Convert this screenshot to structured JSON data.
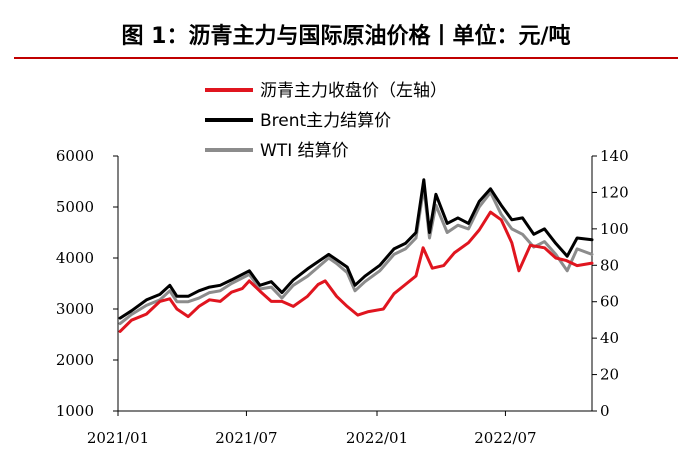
{
  "title": "图 1：沥青主力与国际原油价格丨单位：元/吨",
  "chart_data": {
    "type": "line",
    "x_ticks": [
      "2021/01",
      "2021/07",
      "2022/01",
      "2022/07"
    ],
    "x_range": [
      "2021-01",
      "2022-10"
    ],
    "y_left": {
      "range": [
        1000,
        6000
      ],
      "ticks": [
        "1000",
        "2000",
        "3000",
        "4000",
        "5000",
        "6000"
      ]
    },
    "y_right": {
      "range": [
        0,
        140
      ],
      "ticks": [
        "0",
        "20",
        "40",
        "60",
        "80",
        "100",
        "120",
        "140"
      ]
    },
    "grid": false,
    "legend_position": "top-center",
    "series": [
      {
        "name": "沥青主力收盘价（左轴）",
        "axis": "left",
        "color": "#e0151f",
        "points": [
          [
            "2021-01-04",
            2560
          ],
          [
            "2021-01-20",
            2780
          ],
          [
            "2021-02-10",
            2900
          ],
          [
            "2021-03-01",
            3150
          ],
          [
            "2021-03-15",
            3200
          ],
          [
            "2021-03-25",
            3000
          ],
          [
            "2021-04-10",
            2850
          ],
          [
            "2021-04-25",
            3050
          ],
          [
            "2021-05-10",
            3180
          ],
          [
            "2021-05-25",
            3150
          ],
          [
            "2021-06-10",
            3330
          ],
          [
            "2021-06-25",
            3400
          ],
          [
            "2021-07-05",
            3550
          ],
          [
            "2021-07-20",
            3350
          ],
          [
            "2021-08-05",
            3150
          ],
          [
            "2021-08-20",
            3150
          ],
          [
            "2021-09-05",
            3050
          ],
          [
            "2021-09-25",
            3250
          ],
          [
            "2021-10-10",
            3480
          ],
          [
            "2021-10-20",
            3550
          ],
          [
            "2021-11-05",
            3250
          ],
          [
            "2021-11-20",
            3050
          ],
          [
            "2021-12-05",
            2880
          ],
          [
            "2021-12-20",
            2950
          ],
          [
            "2022-01-10",
            3000
          ],
          [
            "2022-01-25",
            3300
          ],
          [
            "2022-02-10",
            3480
          ],
          [
            "2022-02-25",
            3650
          ],
          [
            "2022-03-07",
            4200
          ],
          [
            "2022-03-20",
            3800
          ],
          [
            "2022-04-05",
            3850
          ],
          [
            "2022-04-20",
            4100
          ],
          [
            "2022-05-10",
            4300
          ],
          [
            "2022-05-25",
            4550
          ],
          [
            "2022-06-10",
            4900
          ],
          [
            "2022-06-25",
            4750
          ],
          [
            "2022-07-10",
            4300
          ],
          [
            "2022-07-20",
            3750
          ],
          [
            "2022-08-05",
            4250
          ],
          [
            "2022-08-25",
            4200
          ],
          [
            "2022-09-10",
            4000
          ],
          [
            "2022-09-25",
            3950
          ],
          [
            "2022-10-10",
            3850
          ],
          [
            "2022-10-31",
            3900
          ]
        ]
      },
      {
        "name": "Brent主力结算价",
        "axis": "right",
        "color": "#000000",
        "points": [
          [
            "2021-01-04",
            51
          ],
          [
            "2021-01-20",
            55
          ],
          [
            "2021-02-10",
            61
          ],
          [
            "2021-03-01",
            64
          ],
          [
            "2021-03-15",
            69
          ],
          [
            "2021-03-25",
            63
          ],
          [
            "2021-04-10",
            63
          ],
          [
            "2021-04-25",
            66
          ],
          [
            "2021-05-10",
            68
          ],
          [
            "2021-05-25",
            69
          ],
          [
            "2021-06-10",
            72
          ],
          [
            "2021-06-25",
            75
          ],
          [
            "2021-07-05",
            77
          ],
          [
            "2021-07-20",
            69
          ],
          [
            "2021-08-05",
            71
          ],
          [
            "2021-08-20",
            65
          ],
          [
            "2021-09-05",
            72
          ],
          [
            "2021-09-25",
            78
          ],
          [
            "2021-10-10",
            82
          ],
          [
            "2021-10-25",
            86
          ],
          [
            "2021-11-05",
            83
          ],
          [
            "2021-11-20",
            79
          ],
          [
            "2021-12-01",
            69
          ],
          [
            "2021-12-15",
            74
          ],
          [
            "2022-01-05",
            80
          ],
          [
            "2022-01-25",
            89
          ],
          [
            "2022-02-10",
            92
          ],
          [
            "2022-02-25",
            98
          ],
          [
            "2022-03-08",
            127
          ],
          [
            "2022-03-16",
            98
          ],
          [
            "2022-03-25",
            119
          ],
          [
            "2022-04-10",
            103
          ],
          [
            "2022-04-25",
            106
          ],
          [
            "2022-05-10",
            103
          ],
          [
            "2022-05-25",
            115
          ],
          [
            "2022-06-10",
            122
          ],
          [
            "2022-06-25",
            113
          ],
          [
            "2022-07-10",
            105
          ],
          [
            "2022-07-25",
            106
          ],
          [
            "2022-08-10",
            97
          ],
          [
            "2022-08-25",
            100
          ],
          [
            "2022-09-10",
            92
          ],
          [
            "2022-09-26",
            85
          ],
          [
            "2022-10-10",
            95
          ],
          [
            "2022-10-31",
            94
          ]
        ]
      },
      {
        "name": "WTI 结算价",
        "axis": "right",
        "color": "#8c8c8c",
        "points": [
          [
            "2021-01-04",
            48
          ],
          [
            "2021-01-20",
            53
          ],
          [
            "2021-02-10",
            58
          ],
          [
            "2021-03-01",
            61
          ],
          [
            "2021-03-15",
            66
          ],
          [
            "2021-03-25",
            60
          ],
          [
            "2021-04-10",
            60
          ],
          [
            "2021-04-25",
            62
          ],
          [
            "2021-05-10",
            65
          ],
          [
            "2021-05-25",
            66
          ],
          [
            "2021-06-10",
            70
          ],
          [
            "2021-06-25",
            73
          ],
          [
            "2021-07-05",
            75
          ],
          [
            "2021-07-20",
            67
          ],
          [
            "2021-08-05",
            68
          ],
          [
            "2021-08-20",
            62
          ],
          [
            "2021-09-05",
            69
          ],
          [
            "2021-09-25",
            74
          ],
          [
            "2021-10-10",
            79
          ],
          [
            "2021-10-25",
            84
          ],
          [
            "2021-11-05",
            81
          ],
          [
            "2021-11-20",
            76
          ],
          [
            "2021-12-01",
            66
          ],
          [
            "2021-12-15",
            71
          ],
          [
            "2022-01-05",
            77
          ],
          [
            "2022-01-25",
            86
          ],
          [
            "2022-02-10",
            89
          ],
          [
            "2022-02-25",
            95
          ],
          [
            "2022-03-08",
            123
          ],
          [
            "2022-03-16",
            95
          ],
          [
            "2022-03-25",
            113
          ],
          [
            "2022-04-10",
            98
          ],
          [
            "2022-04-25",
            102
          ],
          [
            "2022-05-10",
            100
          ],
          [
            "2022-05-25",
            112
          ],
          [
            "2022-06-10",
            120
          ],
          [
            "2022-06-25",
            108
          ],
          [
            "2022-07-10",
            100
          ],
          [
            "2022-07-25",
            97
          ],
          [
            "2022-08-10",
            90
          ],
          [
            "2022-08-25",
            93
          ],
          [
            "2022-09-10",
            86
          ],
          [
            "2022-09-26",
            77
          ],
          [
            "2022-10-10",
            89
          ],
          [
            "2022-10-31",
            86
          ]
        ]
      }
    ]
  }
}
